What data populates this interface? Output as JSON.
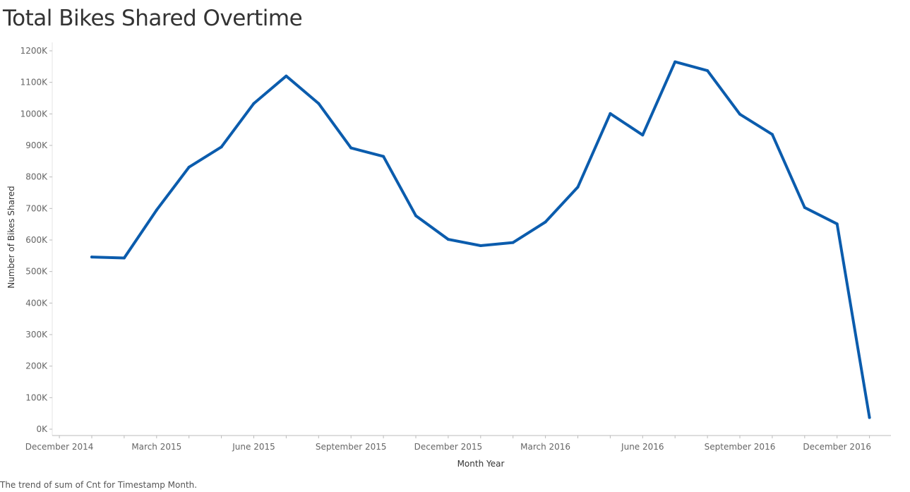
{
  "title": "Total Bikes Shared Overtime",
  "caption": "The trend of sum of Cnt for Timestamp Month.",
  "colors": {
    "line": "#0b5cad",
    "axis": "#bbbbbb",
    "gridline": "#e6e6e6"
  },
  "chart_data": {
    "type": "line",
    "title": "Total Bikes Shared Overtime",
    "xlabel": "Month Year",
    "ylabel": "Number of Bikes Shared",
    "ylim": [
      0,
      1200000
    ],
    "y_ticks": [
      0,
      100000,
      200000,
      300000,
      400000,
      500000,
      600000,
      700000,
      800000,
      900000,
      1000000,
      1100000,
      1200000
    ],
    "y_tick_labels": [
      "0K",
      "100K",
      "200K",
      "300K",
      "400K",
      "500K",
      "600K",
      "700K",
      "800K",
      "900K",
      "1000K",
      "1100K",
      "1200K"
    ],
    "x_tick_labels": [
      {
        "date": "2014-12",
        "label": "December 2014"
      },
      {
        "date": "2015-03",
        "label": "March 2015"
      },
      {
        "date": "2015-06",
        "label": "June 2015"
      },
      {
        "date": "2015-09",
        "label": "September 2015"
      },
      {
        "date": "2015-12",
        "label": "December 2015"
      },
      {
        "date": "2016-03",
        "label": "March 2016"
      },
      {
        "date": "2016-06",
        "label": "June 2016"
      },
      {
        "date": "2016-09",
        "label": "September 2016"
      },
      {
        "date": "2016-12",
        "label": "December 2016"
      }
    ],
    "grid": false,
    "series": [
      {
        "x": [
          "2015-01",
          "2015-02",
          "2015-03",
          "2015-04",
          "2015-05",
          "2015-06",
          "2015-07",
          "2015-08",
          "2015-09",
          "2015-10",
          "2015-11",
          "2015-12",
          "2016-01",
          "2016-02",
          "2016-03",
          "2016-04",
          "2016-05",
          "2016-06",
          "2016-07",
          "2016-08",
          "2016-09",
          "2016-10",
          "2016-11",
          "2016-12",
          "2017-01"
        ],
        "values": [
          546000,
          543000,
          695000,
          831000,
          895000,
          1033000,
          1120000,
          1033000,
          892000,
          865000,
          677000,
          602000,
          582000,
          592000,
          657000,
          768000,
          1001000,
          933000,
          1165000,
          1137000,
          999000,
          935000,
          703000,
          651000,
          37000
        ]
      }
    ]
  }
}
